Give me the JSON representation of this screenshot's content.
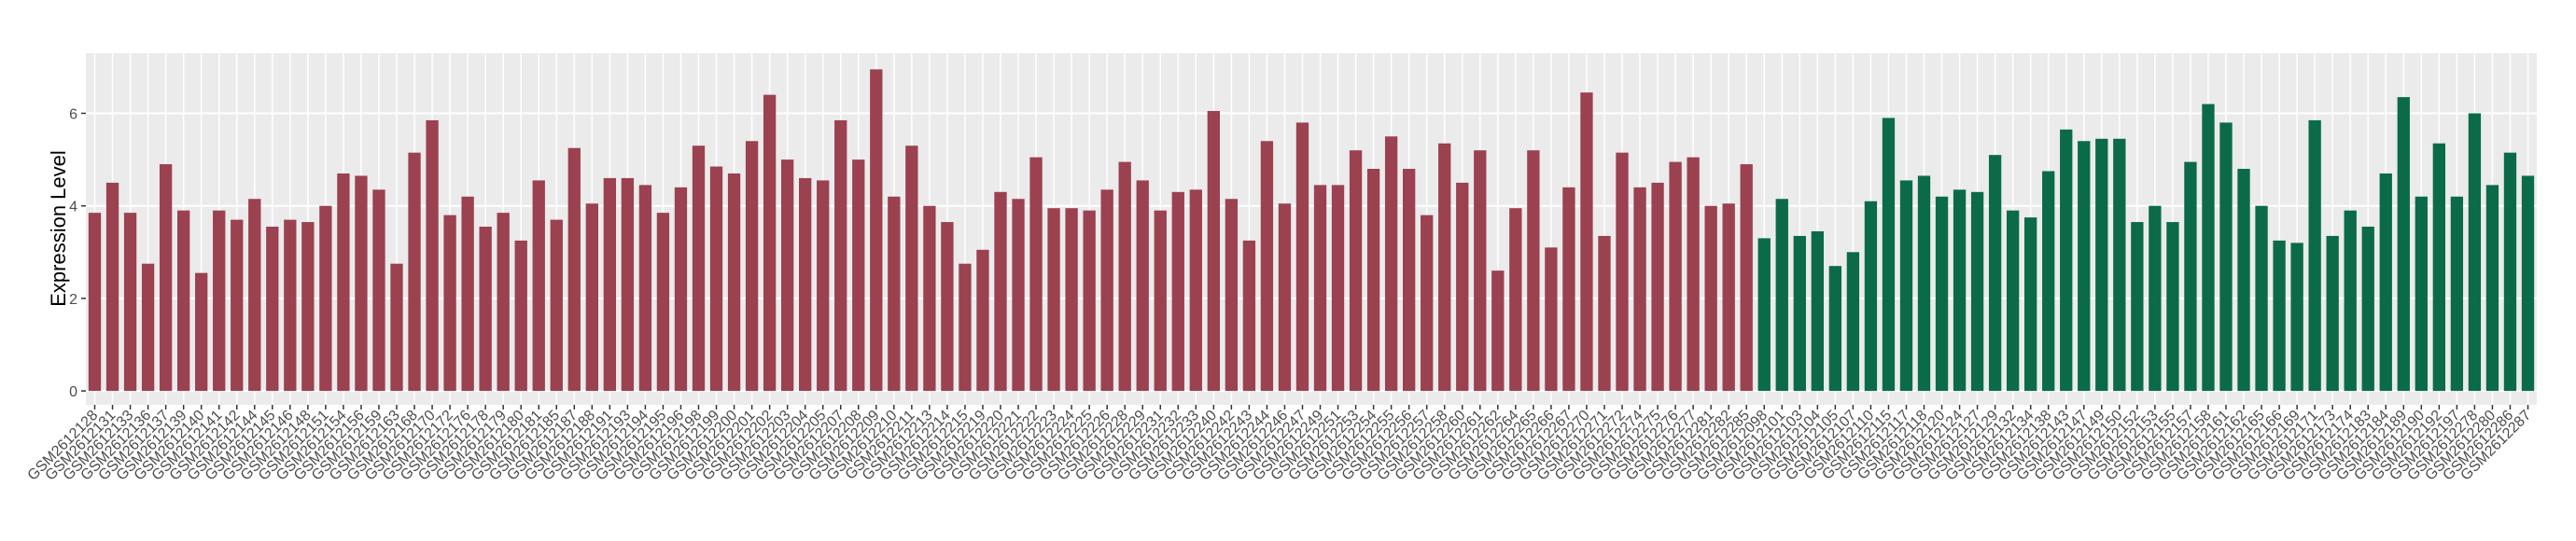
{
  "chart_data": {
    "type": "bar",
    "y_label": "Expression Level",
    "ylim": [
      -0.3,
      7.3
    ],
    "yticks": [
      0,
      2,
      4,
      6
    ],
    "grid": true,
    "groups": [
      {
        "color": "#9b4150",
        "categories": [
          "GSM2612128",
          "GSM2612131",
          "GSM2612133",
          "GSM2612136",
          "GSM2612137",
          "GSM2612139",
          "GSM2612140",
          "GSM2612141",
          "GSM2612142",
          "GSM2612144",
          "GSM2612145",
          "GSM2612146",
          "GSM2612148",
          "GSM2612151",
          "GSM2612154",
          "GSM2612156",
          "GSM2612159",
          "GSM2612163",
          "GSM2612168",
          "GSM2612170",
          "GSM2612172",
          "GSM2612176",
          "GSM2612178",
          "GSM2612179",
          "GSM2612180",
          "GSM2612181",
          "GSM2612185",
          "GSM2612187",
          "GSM2612188",
          "GSM2612191",
          "GSM2612193",
          "GSM2612194",
          "GSM2612195",
          "GSM2612196",
          "GSM2612198",
          "GSM2612199",
          "GSM2612200",
          "GSM2612201",
          "GSM2612202",
          "GSM2612203",
          "GSM2612204",
          "GSM2612205",
          "GSM2612207",
          "GSM2612208",
          "GSM2612209",
          "GSM2612210",
          "GSM2612211",
          "GSM2612213",
          "GSM2612214",
          "GSM2612215",
          "GSM2612219",
          "GSM2612220",
          "GSM2612221",
          "GSM2612222",
          "GSM2612223",
          "GSM2612224",
          "GSM2612225",
          "GSM2612226",
          "GSM2612228",
          "GSM2612229",
          "GSM2612231",
          "GSM2612232",
          "GSM2612233",
          "GSM2612240",
          "GSM2612242",
          "GSM2612243",
          "GSM2612244",
          "GSM2612246",
          "GSM2612247",
          "GSM2612249",
          "GSM2612251",
          "GSM2612253",
          "GSM2612254",
          "GSM2612255",
          "GSM2612256",
          "GSM2612257",
          "GSM2612258",
          "GSM2612260",
          "GSM2612261",
          "GSM2612262",
          "GSM2612264",
          "GSM2612265",
          "GSM2612266",
          "GSM2612267",
          "GSM2612270",
          "GSM2612271",
          "GSM2612272",
          "GSM2612274",
          "GSM2612275",
          "GSM2612276",
          "GSM2612277",
          "GSM2612281",
          "GSM2612282",
          "GSM2612285"
        ],
        "values": [
          3.85,
          4.5,
          3.85,
          2.75,
          4.9,
          3.9,
          2.55,
          3.9,
          3.7,
          4.15,
          3.55,
          3.7,
          3.65,
          4.0,
          4.7,
          4.65,
          4.35,
          2.75,
          5.15,
          5.85,
          3.8,
          4.2,
          3.55,
          3.85,
          3.25,
          4.55,
          3.7,
          5.25,
          4.05,
          4.6,
          4.6,
          4.45,
          3.85,
          4.4,
          5.3,
          4.85,
          4.7,
          5.4,
          6.4,
          5.0,
          4.6,
          4.55,
          5.85,
          5.0,
          6.95,
          4.2,
          5.3,
          4.0,
          3.65,
          2.75,
          3.05,
          4.3,
          4.15,
          5.05,
          3.95,
          3.95,
          3.9,
          4.35,
          4.95,
          4.55,
          3.9,
          4.3,
          4.35,
          6.05,
          4.15,
          3.25,
          5.4,
          4.05,
          5.8,
          4.45,
          4.45,
          5.2,
          4.8,
          5.5,
          4.8,
          3.8,
          5.35,
          4.5,
          5.2,
          2.6,
          3.95,
          5.2,
          3.1,
          4.4,
          6.45,
          3.35,
          5.15,
          4.4,
          4.5,
          4.95,
          5.05,
          4.0,
          4.05,
          4.9
        ]
      },
      {
        "color": "#0b6b48",
        "categories": [
          "GSM2612098",
          "GSM2612101",
          "GSM2612103",
          "GSM2612104",
          "GSM2612105",
          "GSM2612107",
          "GSM2612110",
          "GSM2612115",
          "GSM2612117",
          "GSM2612118",
          "GSM2612120",
          "GSM2612124",
          "GSM2612127",
          "GSM2612129",
          "GSM2612132",
          "GSM2612134",
          "GSM2612138",
          "GSM2612143",
          "GSM2612147",
          "GSM2612149",
          "GSM2612150",
          "GSM2612152",
          "GSM2612153",
          "GSM2612155",
          "GSM2612157",
          "GSM2612158",
          "GSM2612161",
          "GSM2612162",
          "GSM2612165",
          "GSM2612166",
          "GSM2612169",
          "GSM2612171",
          "GSM2612173",
          "GSM2612174",
          "GSM2612183",
          "GSM2612184",
          "GSM2612189",
          "GSM2612190",
          "GSM2612192",
          "GSM2612197",
          "GSM2612278",
          "GSM2612280",
          "GSM2612286",
          "GSM2612287"
        ],
        "values": [
          3.3,
          4.15,
          3.35,
          3.45,
          2.7,
          3.0,
          4.1,
          5.9,
          4.55,
          4.65,
          4.2,
          4.35,
          4.3,
          5.1,
          3.9,
          3.75,
          4.75,
          5.65,
          5.4,
          5.45,
          5.45,
          3.65,
          4.0,
          3.65,
          4.95,
          6.2,
          5.8,
          4.8,
          4.0,
          3.25,
          3.2,
          5.85,
          3.35,
          3.9,
          3.55,
          4.7,
          6.35,
          4.2,
          5.35,
          4.2,
          6.0,
          4.45,
          5.15,
          4.65
        ]
      }
    ]
  }
}
